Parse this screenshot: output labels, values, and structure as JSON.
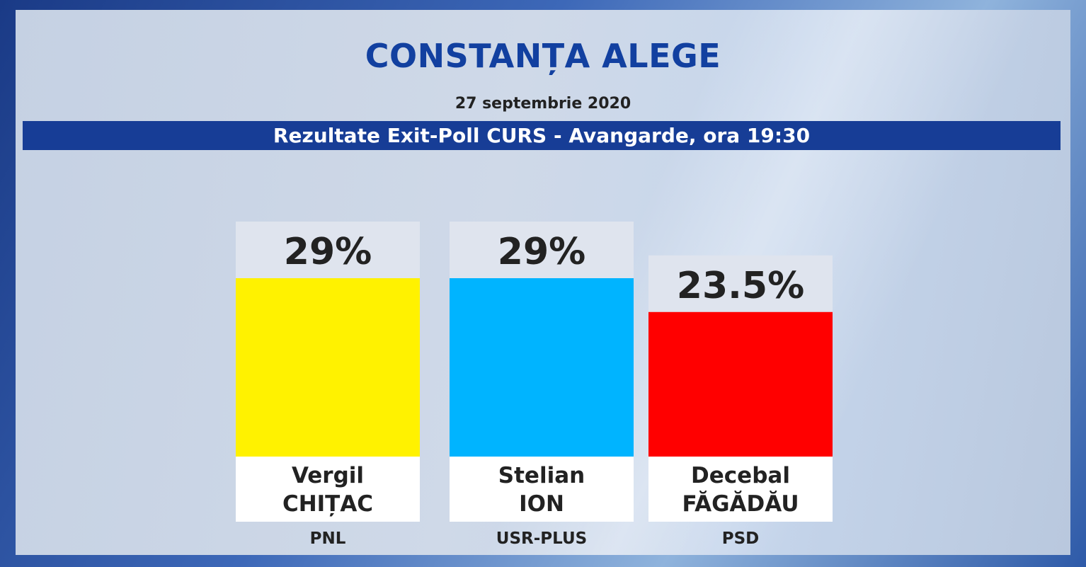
{
  "header": {
    "title": "CONSTANȚA ALEGE",
    "date": "27 septembrie 2020",
    "banner": "Rezultate Exit-Poll CURS - Avangarde, ora 19:30"
  },
  "chart_data": {
    "type": "bar",
    "title": "Rezultate Exit-Poll CURS - Avangarde, ora 19:30",
    "categories": [
      "Vergil CHIȚAC",
      "Stelian ION",
      "Decebal FĂGĂDĂU"
    ],
    "values": [
      29,
      29,
      23.5
    ],
    "value_labels": [
      "29%",
      "29%",
      "23.5%"
    ],
    "name_lines": [
      [
        "Vergil",
        "CHIȚAC"
      ],
      [
        "Stelian",
        "ION"
      ],
      [
        "Decebal",
        "FĂGĂDĂU"
      ]
    ],
    "parties": [
      "PNL",
      "USR-PLUS",
      "PSD"
    ],
    "colors": [
      "#fff200",
      "#00b4ff",
      "#ff0000"
    ],
    "ylim": [
      0,
      29
    ],
    "grid": false,
    "legend": "none"
  }
}
